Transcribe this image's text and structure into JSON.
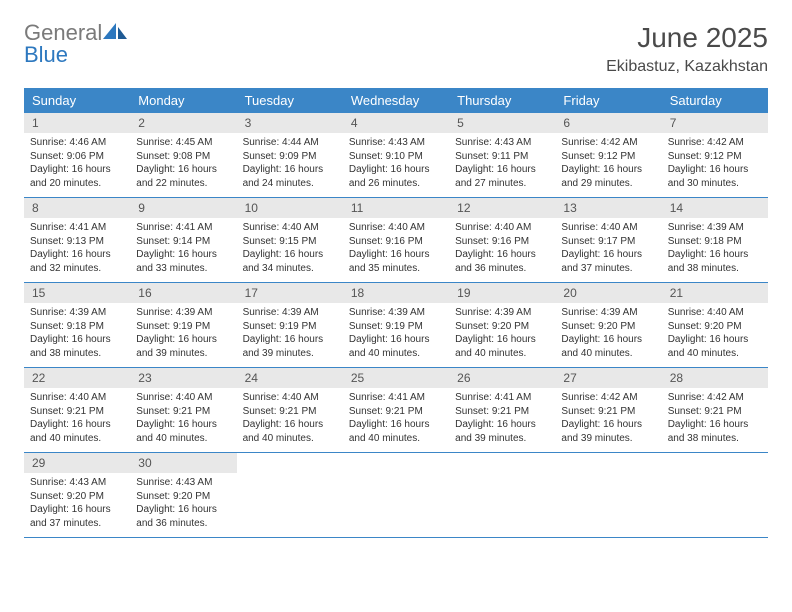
{
  "colors": {
    "header_blue": "#3b86c7",
    "daynum_bg": "#e8e8e8",
    "text_gray": "#4a4a4a",
    "body_text": "#333333",
    "logo_gray": "#7a7a7a",
    "logo_blue": "#2d78bf",
    "page_bg": "#ffffff"
  },
  "logo": {
    "line1": "General",
    "line2": "Blue"
  },
  "title": "June 2025",
  "location": "Ekibastuz, Kazakhstan",
  "weekdays": [
    "Sunday",
    "Monday",
    "Tuesday",
    "Wednesday",
    "Thursday",
    "Friday",
    "Saturday"
  ],
  "weeks": [
    [
      {
        "n": "1",
        "sr": "Sunrise: 4:46 AM",
        "ss": "Sunset: 9:06 PM",
        "dl1": "Daylight: 16 hours",
        "dl2": "and 20 minutes."
      },
      {
        "n": "2",
        "sr": "Sunrise: 4:45 AM",
        "ss": "Sunset: 9:08 PM",
        "dl1": "Daylight: 16 hours",
        "dl2": "and 22 minutes."
      },
      {
        "n": "3",
        "sr": "Sunrise: 4:44 AM",
        "ss": "Sunset: 9:09 PM",
        "dl1": "Daylight: 16 hours",
        "dl2": "and 24 minutes."
      },
      {
        "n": "4",
        "sr": "Sunrise: 4:43 AM",
        "ss": "Sunset: 9:10 PM",
        "dl1": "Daylight: 16 hours",
        "dl2": "and 26 minutes."
      },
      {
        "n": "5",
        "sr": "Sunrise: 4:43 AM",
        "ss": "Sunset: 9:11 PM",
        "dl1": "Daylight: 16 hours",
        "dl2": "and 27 minutes."
      },
      {
        "n": "6",
        "sr": "Sunrise: 4:42 AM",
        "ss": "Sunset: 9:12 PM",
        "dl1": "Daylight: 16 hours",
        "dl2": "and 29 minutes."
      },
      {
        "n": "7",
        "sr": "Sunrise: 4:42 AM",
        "ss": "Sunset: 9:12 PM",
        "dl1": "Daylight: 16 hours",
        "dl2": "and 30 minutes."
      }
    ],
    [
      {
        "n": "8",
        "sr": "Sunrise: 4:41 AM",
        "ss": "Sunset: 9:13 PM",
        "dl1": "Daylight: 16 hours",
        "dl2": "and 32 minutes."
      },
      {
        "n": "9",
        "sr": "Sunrise: 4:41 AM",
        "ss": "Sunset: 9:14 PM",
        "dl1": "Daylight: 16 hours",
        "dl2": "and 33 minutes."
      },
      {
        "n": "10",
        "sr": "Sunrise: 4:40 AM",
        "ss": "Sunset: 9:15 PM",
        "dl1": "Daylight: 16 hours",
        "dl2": "and 34 minutes."
      },
      {
        "n": "11",
        "sr": "Sunrise: 4:40 AM",
        "ss": "Sunset: 9:16 PM",
        "dl1": "Daylight: 16 hours",
        "dl2": "and 35 minutes."
      },
      {
        "n": "12",
        "sr": "Sunrise: 4:40 AM",
        "ss": "Sunset: 9:16 PM",
        "dl1": "Daylight: 16 hours",
        "dl2": "and 36 minutes."
      },
      {
        "n": "13",
        "sr": "Sunrise: 4:40 AM",
        "ss": "Sunset: 9:17 PM",
        "dl1": "Daylight: 16 hours",
        "dl2": "and 37 minutes."
      },
      {
        "n": "14",
        "sr": "Sunrise: 4:39 AM",
        "ss": "Sunset: 9:18 PM",
        "dl1": "Daylight: 16 hours",
        "dl2": "and 38 minutes."
      }
    ],
    [
      {
        "n": "15",
        "sr": "Sunrise: 4:39 AM",
        "ss": "Sunset: 9:18 PM",
        "dl1": "Daylight: 16 hours",
        "dl2": "and 38 minutes."
      },
      {
        "n": "16",
        "sr": "Sunrise: 4:39 AM",
        "ss": "Sunset: 9:19 PM",
        "dl1": "Daylight: 16 hours",
        "dl2": "and 39 minutes."
      },
      {
        "n": "17",
        "sr": "Sunrise: 4:39 AM",
        "ss": "Sunset: 9:19 PM",
        "dl1": "Daylight: 16 hours",
        "dl2": "and 39 minutes."
      },
      {
        "n": "18",
        "sr": "Sunrise: 4:39 AM",
        "ss": "Sunset: 9:19 PM",
        "dl1": "Daylight: 16 hours",
        "dl2": "and 40 minutes."
      },
      {
        "n": "19",
        "sr": "Sunrise: 4:39 AM",
        "ss": "Sunset: 9:20 PM",
        "dl1": "Daylight: 16 hours",
        "dl2": "and 40 minutes."
      },
      {
        "n": "20",
        "sr": "Sunrise: 4:39 AM",
        "ss": "Sunset: 9:20 PM",
        "dl1": "Daylight: 16 hours",
        "dl2": "and 40 minutes."
      },
      {
        "n": "21",
        "sr": "Sunrise: 4:40 AM",
        "ss": "Sunset: 9:20 PM",
        "dl1": "Daylight: 16 hours",
        "dl2": "and 40 minutes."
      }
    ],
    [
      {
        "n": "22",
        "sr": "Sunrise: 4:40 AM",
        "ss": "Sunset: 9:21 PM",
        "dl1": "Daylight: 16 hours",
        "dl2": "and 40 minutes."
      },
      {
        "n": "23",
        "sr": "Sunrise: 4:40 AM",
        "ss": "Sunset: 9:21 PM",
        "dl1": "Daylight: 16 hours",
        "dl2": "and 40 minutes."
      },
      {
        "n": "24",
        "sr": "Sunrise: 4:40 AM",
        "ss": "Sunset: 9:21 PM",
        "dl1": "Daylight: 16 hours",
        "dl2": "and 40 minutes."
      },
      {
        "n": "25",
        "sr": "Sunrise: 4:41 AM",
        "ss": "Sunset: 9:21 PM",
        "dl1": "Daylight: 16 hours",
        "dl2": "and 40 minutes."
      },
      {
        "n": "26",
        "sr": "Sunrise: 4:41 AM",
        "ss": "Sunset: 9:21 PM",
        "dl1": "Daylight: 16 hours",
        "dl2": "and 39 minutes."
      },
      {
        "n": "27",
        "sr": "Sunrise: 4:42 AM",
        "ss": "Sunset: 9:21 PM",
        "dl1": "Daylight: 16 hours",
        "dl2": "and 39 minutes."
      },
      {
        "n": "28",
        "sr": "Sunrise: 4:42 AM",
        "ss": "Sunset: 9:21 PM",
        "dl1": "Daylight: 16 hours",
        "dl2": "and 38 minutes."
      }
    ],
    [
      {
        "n": "29",
        "sr": "Sunrise: 4:43 AM",
        "ss": "Sunset: 9:20 PM",
        "dl1": "Daylight: 16 hours",
        "dl2": "and 37 minutes."
      },
      {
        "n": "30",
        "sr": "Sunrise: 4:43 AM",
        "ss": "Sunset: 9:20 PM",
        "dl1": "Daylight: 16 hours",
        "dl2": "and 36 minutes."
      },
      {
        "empty": true
      },
      {
        "empty": true
      },
      {
        "empty": true
      },
      {
        "empty": true
      },
      {
        "empty": true
      }
    ]
  ]
}
